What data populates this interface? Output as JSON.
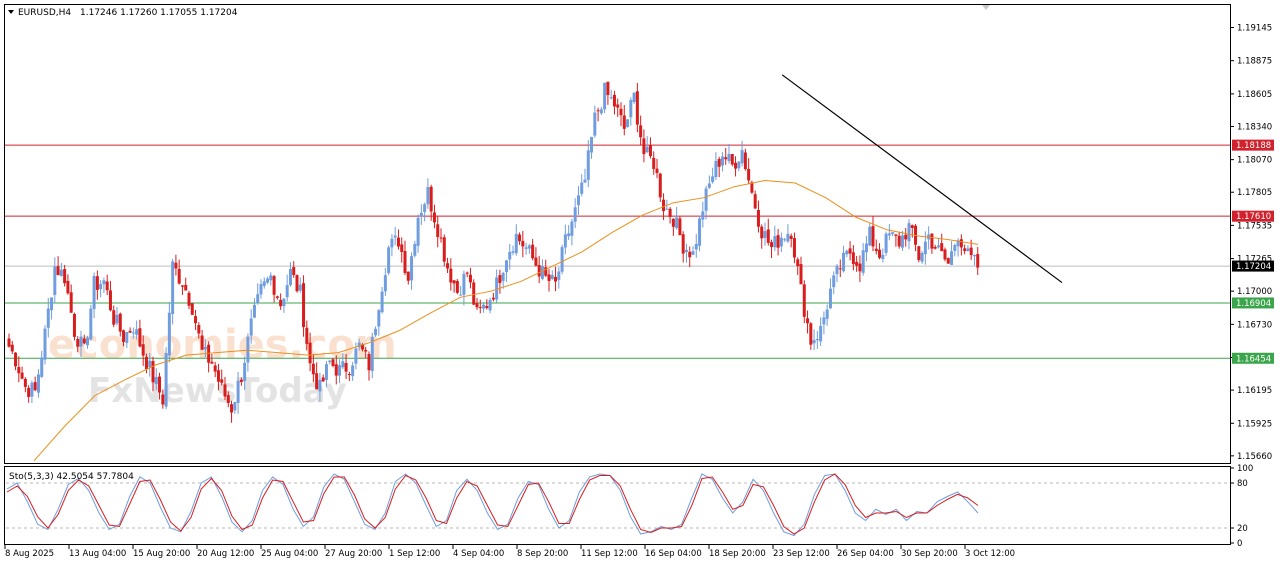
{
  "header": {
    "symbol": "EURUSD,H4",
    "ohlc": "1.17246 1.17260 1.17055 1.17204"
  },
  "indicator": {
    "label": "Sto(5,3,3) 42.5054 57.7804",
    "levels": [
      "100",
      "80",
      "20",
      "0"
    ]
  },
  "watermark": {
    "line1": "economies.com",
    "line2": "FxNewsToday"
  },
  "colors": {
    "bull": "#6f9ddf",
    "bear": "#d91c1c",
    "resistance": "#d0212c",
    "support": "#3aa54a",
    "current": "#bdbdbd",
    "ma": "#ea8f1d",
    "trendline": "#000000",
    "stoch_main": "#6f9ddf",
    "stoch_signal": "#d91c1c"
  },
  "chart_data": {
    "type": "candlestick",
    "title": "EURUSD,H4",
    "price_axis_ticks": [
      "1.19145",
      "1.18875",
      "1.18605",
      "1.18340",
      "1.18070",
      "1.17805",
      "1.17535",
      "1.17265",
      "1.17000",
      "1.16730",
      "1.16460",
      "1.16195",
      "1.15925",
      "1.15660"
    ],
    "ylim": [
      1.1561,
      1.1932
    ],
    "time_axis_labels": [
      "8 Aug 2025",
      "13 Aug 04:00",
      "15 Aug 20:00",
      "20 Aug 12:00",
      "25 Aug 04:00",
      "27 Aug 20:00",
      "1 Sep 12:00",
      "4 Sep 04:00",
      "8 Sep 20:00",
      "11 Sep 12:00",
      "16 Sep 04:00",
      "18 Sep 20:00",
      "23 Sep 12:00",
      "26 Sep 04:00",
      "30 Sep 20:00",
      "3 Oct 12:00"
    ],
    "levels": [
      {
        "label": "1.18188",
        "value": 1.18188,
        "kind": "resistance"
      },
      {
        "label": "1.17610",
        "value": 1.1761,
        "kind": "resistance"
      },
      {
        "label": "1.17204",
        "value": 1.17204,
        "kind": "current"
      },
      {
        "label": "1.16904",
        "value": 1.16904,
        "kind": "support"
      },
      {
        "label": "1.16454",
        "value": 1.16454,
        "kind": "support"
      }
    ],
    "trendline": {
      "from": {
        "bar": 0.735,
        "price": 1.1876
      },
      "to": {
        "bar": 1.0,
        "price": 1.1707
      }
    },
    "price_path": [
      1.166,
      1.1645,
      1.1622,
      1.1618,
      1.1665,
      1.172,
      1.1712,
      1.1668,
      1.165,
      1.1705,
      1.1708,
      1.1678,
      1.1663,
      1.1672,
      1.165,
      1.163,
      1.1612,
      1.172,
      1.1708,
      1.1688,
      1.165,
      1.1642,
      1.162,
      1.1605,
      1.1632,
      1.1672,
      1.17,
      1.1712,
      1.169,
      1.1715,
      1.1698,
      1.164,
      1.162,
      1.1642,
      1.1635,
      1.164,
      1.1655,
      1.164,
      1.1692,
      1.1735,
      1.1742,
      1.1712,
      1.1762,
      1.178,
      1.1752,
      1.172,
      1.17,
      1.1715,
      1.168,
      1.169,
      1.1705,
      1.173,
      1.1745,
      1.1735,
      1.1722,
      1.171,
      1.1705,
      1.174,
      1.1765,
      1.179,
      1.184,
      1.1862,
      1.1852,
      1.1832,
      1.1858,
      1.1812,
      1.1805,
      1.177,
      1.176,
      1.1738,
      1.173,
      1.1768,
      1.1795,
      1.1812,
      1.1802,
      1.1815,
      1.178,
      1.175,
      1.1735,
      1.1745,
      1.175,
      1.17,
      1.166,
      1.1668,
      1.17,
      1.172,
      1.1732,
      1.1722,
      1.1745,
      1.173,
      1.1745,
      1.174,
      1.1752,
      1.1728,
      1.1745,
      1.1732,
      1.1722,
      1.1748,
      1.1728,
      1.172
    ],
    "ma_path": [
      1.1562,
      1.159,
      1.1615,
      1.1628,
      1.164,
      1.1648,
      1.165,
      1.1652,
      1.165,
      1.1648,
      1.165,
      1.1658,
      1.1668,
      1.1682,
      1.1695,
      1.17,
      1.1708,
      1.172,
      1.1732,
      1.1748,
      1.1762,
      1.1772,
      1.1776,
      1.1785,
      1.179,
      1.1788,
      1.1776,
      1.176,
      1.175,
      1.1745,
      1.1742,
      1.1738
    ],
    "stochastic": {
      "ylim": [
        0,
        100
      ],
      "levels": [
        20,
        80
      ],
      "series": [
        {
          "role": "main",
          "values": [
            72,
            80,
            55,
            25,
            18,
            45,
            78,
            86,
            70,
            40,
            18,
            25,
            62,
            88,
            80,
            48,
            20,
            15,
            42,
            80,
            88,
            62,
            28,
            15,
            30,
            70,
            88,
            78,
            45,
            22,
            35,
            75,
            92,
            85,
            55,
            25,
            18,
            40,
            82,
            92,
            80,
            50,
            22,
            30,
            70,
            85,
            70,
            40,
            18,
            25,
            60,
            82,
            78,
            45,
            20,
            30,
            68,
            88,
            92,
            90,
            70,
            35,
            12,
            15,
            22,
            18,
            25,
            60,
            92,
            85,
            60,
            40,
            55,
            85,
            70,
            40,
            15,
            10,
            25,
            65,
            90,
            92,
            70,
            40,
            30,
            45,
            38,
            45,
            30,
            42,
            40,
            55,
            62,
            68,
            55,
            40
          ]
        },
        {
          "role": "signal",
          "values": [
            68,
            76,
            62,
            35,
            20,
            38,
            70,
            84,
            76,
            50,
            24,
            22,
            52,
            82,
            84,
            58,
            28,
            16,
            34,
            72,
            86,
            70,
            36,
            18,
            24,
            60,
            84,
            82,
            55,
            28,
            30,
            66,
            88,
            88,
            64,
            32,
            20,
            34,
            72,
            90,
            84,
            60,
            30,
            26,
            60,
            82,
            76,
            50,
            24,
            22,
            50,
            78,
            80,
            55,
            26,
            26,
            58,
            84,
            90,
            90,
            76,
            45,
            18,
            14,
            20,
            20,
            22,
            50,
            86,
            88,
            68,
            45,
            50,
            78,
            75,
            50,
            22,
            12,
            20,
            55,
            84,
            92,
            78,
            50,
            34,
            40,
            40,
            42,
            34,
            40,
            40,
            50,
            58,
            65,
            60,
            50
          ]
        }
      ]
    }
  }
}
